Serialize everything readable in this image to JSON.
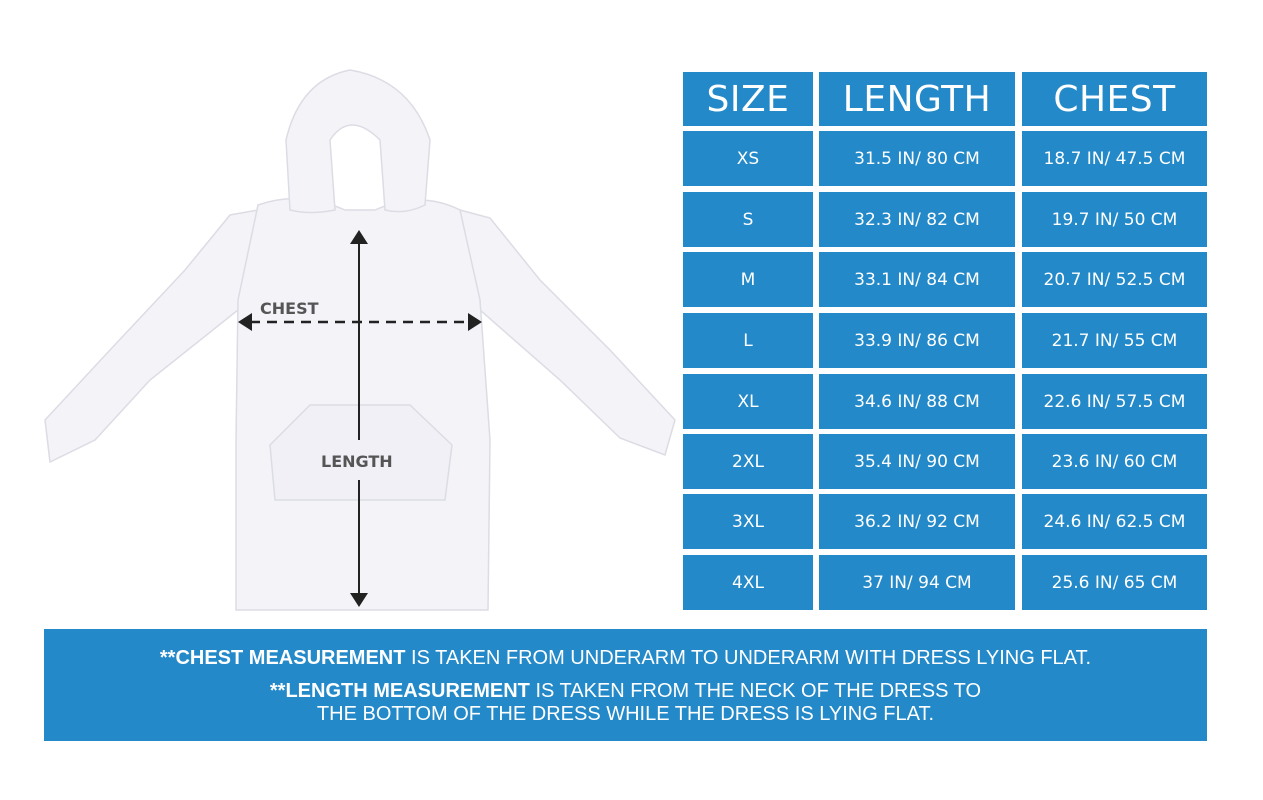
{
  "diagram": {
    "chest_label": "CHEST",
    "length_label": "LENGTH"
  },
  "table": {
    "headers": [
      "SIZE",
      "LENGTH",
      "CHEST"
    ],
    "rows": [
      [
        "XS",
        "31.5 IN/ 80 CM",
        "18.7 IN/ 47.5 CM"
      ],
      [
        "S",
        "32.3 IN/ 82 CM",
        "19.7 IN/ 50 CM"
      ],
      [
        "M",
        "33.1 IN/ 84 CM",
        "20.7 IN/ 52.5 CM"
      ],
      [
        "L",
        "33.9 IN/ 86 CM",
        "21.7 IN/ 55 CM"
      ],
      [
        "XL",
        "34.6 IN/ 88 CM",
        "22.6 IN/ 57.5 CM"
      ],
      [
        "2XL",
        "35.4 IN/ 90 CM",
        "23.6 IN/ 60 CM"
      ],
      [
        "3XL",
        "36.2 IN/ 92 CM",
        "24.6 IN/ 62.5 CM"
      ],
      [
        "4XL",
        "37 IN/ 94 CM",
        "25.6 IN/ 65 CM"
      ]
    ]
  },
  "notes": {
    "chest_bold": "**CHEST MEASUREMENT",
    "chest_text": " IS TAKEN FROM UNDERARM TO UNDERARM WITH DRESS LYING FLAT.",
    "length_bold": "**LENGTH MEASUREMENT",
    "length_text": " IS TAKEN FROM THE NECK OF THE DRESS TO",
    "length_text2": "THE BOTTOM OF THE DRESS WHILE THE DRESS IS LYING FLAT."
  },
  "colors": {
    "accent": "#2389c8",
    "label_gray": "#555555"
  }
}
